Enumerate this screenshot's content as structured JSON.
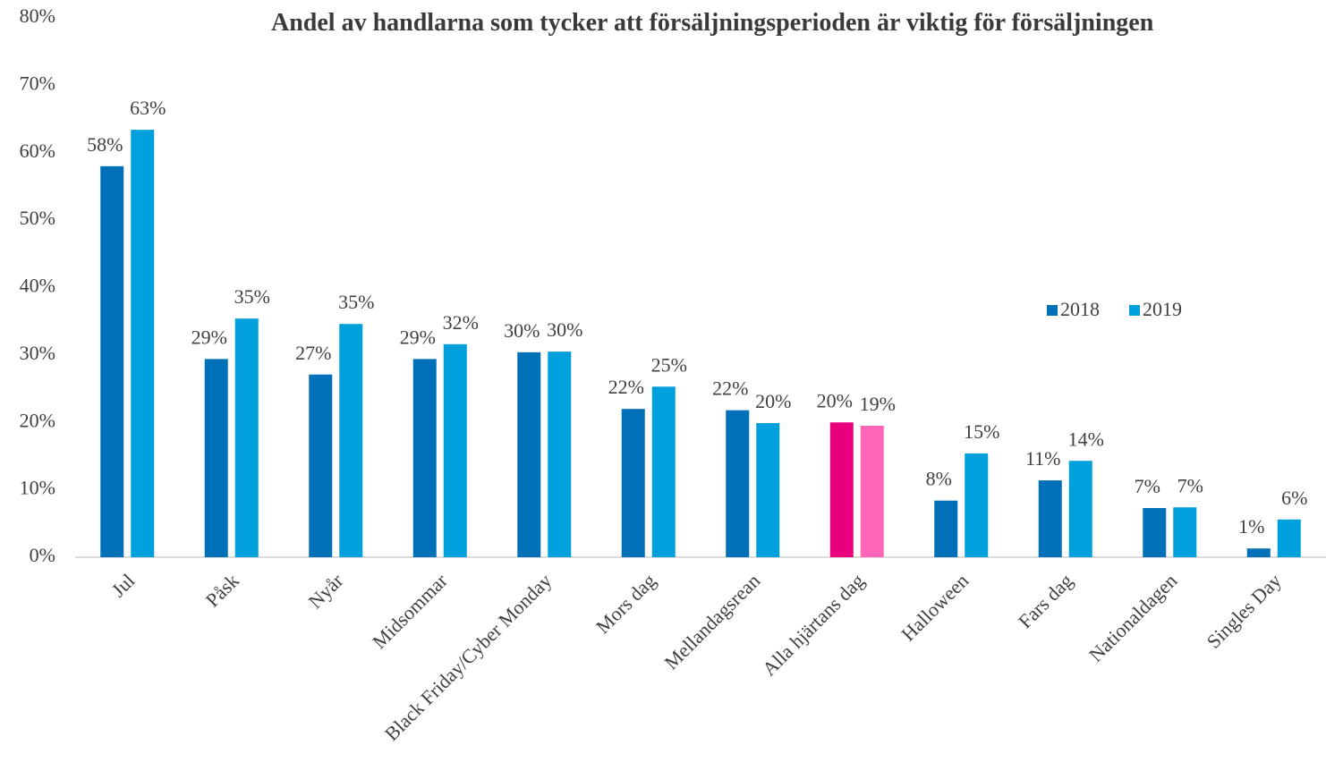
{
  "chart_data": {
    "type": "bar",
    "title": "Andel av handlarna som tycker att försäljningsperioden är viktig för försäljningen",
    "categories": [
      "Jul",
      "Påsk",
      "Nyår",
      "Midsommar",
      "Black Friday/Cyber Monday",
      "Mors dag",
      "Mellandagsrean",
      "Alla hjärtans dag",
      "Halloween",
      "Fars dag",
      "Nationaldagen",
      "Singles Day"
    ],
    "series": [
      {
        "name": "2018",
        "color": "#0070b8",
        "colors": [
          "#0070b8",
          "#0070b8",
          "#0070b8",
          "#0070b8",
          "#0070b8",
          "#0070b8",
          "#0070b8",
          "#e8007d",
          "#0070b8",
          "#0070b8",
          "#0070b8",
          "#0070b8"
        ],
        "values": [
          58,
          29.4,
          27.1,
          29.4,
          30.4,
          22,
          21.8,
          20,
          8.4,
          11.4,
          7.3,
          1.3
        ],
        "value_labels": [
          "58%",
          "29%",
          "27%",
          "29%",
          "30%",
          "22%",
          "22%",
          "20%",
          "8%",
          "11%",
          "7%",
          "1%"
        ]
      },
      {
        "name": "2019",
        "color": "#00a0dc",
        "colors": [
          "#00a0dc",
          "#00a0dc",
          "#00a0dc",
          "#00a0dc",
          "#00a0dc",
          "#00a0dc",
          "#00a0dc",
          "#ff66b8",
          "#00a0dc",
          "#00a0dc",
          "#00a0dc",
          "#00a0dc"
        ],
        "values": [
          63.4,
          35.4,
          34.6,
          31.6,
          30.5,
          25.3,
          19.9,
          19.5,
          15.4,
          14.3,
          7.4,
          5.6
        ],
        "value_labels": [
          "63%",
          "35%",
          "35%",
          "32%",
          "30%",
          "25%",
          "20%",
          "19%",
          "15%",
          "14%",
          "7%",
          "6%"
        ]
      }
    ],
    "ylim": [
      0,
      80
    ],
    "yticks": [
      {
        "value": 0,
        "label": "0%"
      },
      {
        "value": 10,
        "label": "10%"
      },
      {
        "value": 20,
        "label": "20%"
      },
      {
        "value": 30,
        "label": "30%"
      },
      {
        "value": 40,
        "label": "40%"
      },
      {
        "value": 50,
        "label": "50%"
      },
      {
        "value": 60,
        "label": "60%"
      },
      {
        "value": 70,
        "label": "70%"
      },
      {
        "value": 80,
        "label": "80%"
      }
    ],
    "grid": false
  }
}
